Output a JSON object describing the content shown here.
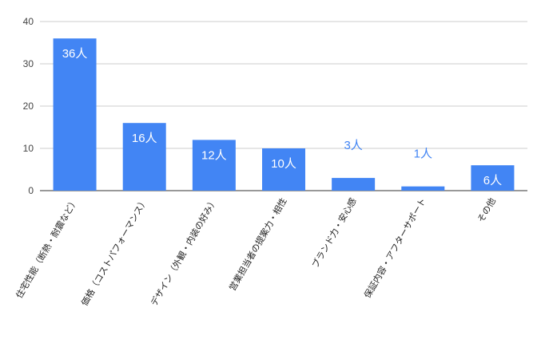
{
  "chart_data": {
    "type": "bar",
    "categories": [
      "住宅性能（断熱・耐震など）",
      "価格（コストパフォーマンス）",
      "デザイン（外観・内装の好み）",
      "営業担当者の提案力・相性",
      "ブランド力・安心感",
      "保証内容・アフターサポート",
      "その他"
    ],
    "values": [
      36,
      16,
      12,
      10,
      3,
      1,
      6
    ],
    "value_labels": [
      "36人",
      "16人",
      "12人",
      "10人",
      "3人",
      "1人",
      "6人"
    ],
    "color": "#4285f4",
    "ylim": [
      0,
      40
    ],
    "yticks": [
      0,
      10,
      20,
      30,
      40
    ],
    "grid": true
  }
}
